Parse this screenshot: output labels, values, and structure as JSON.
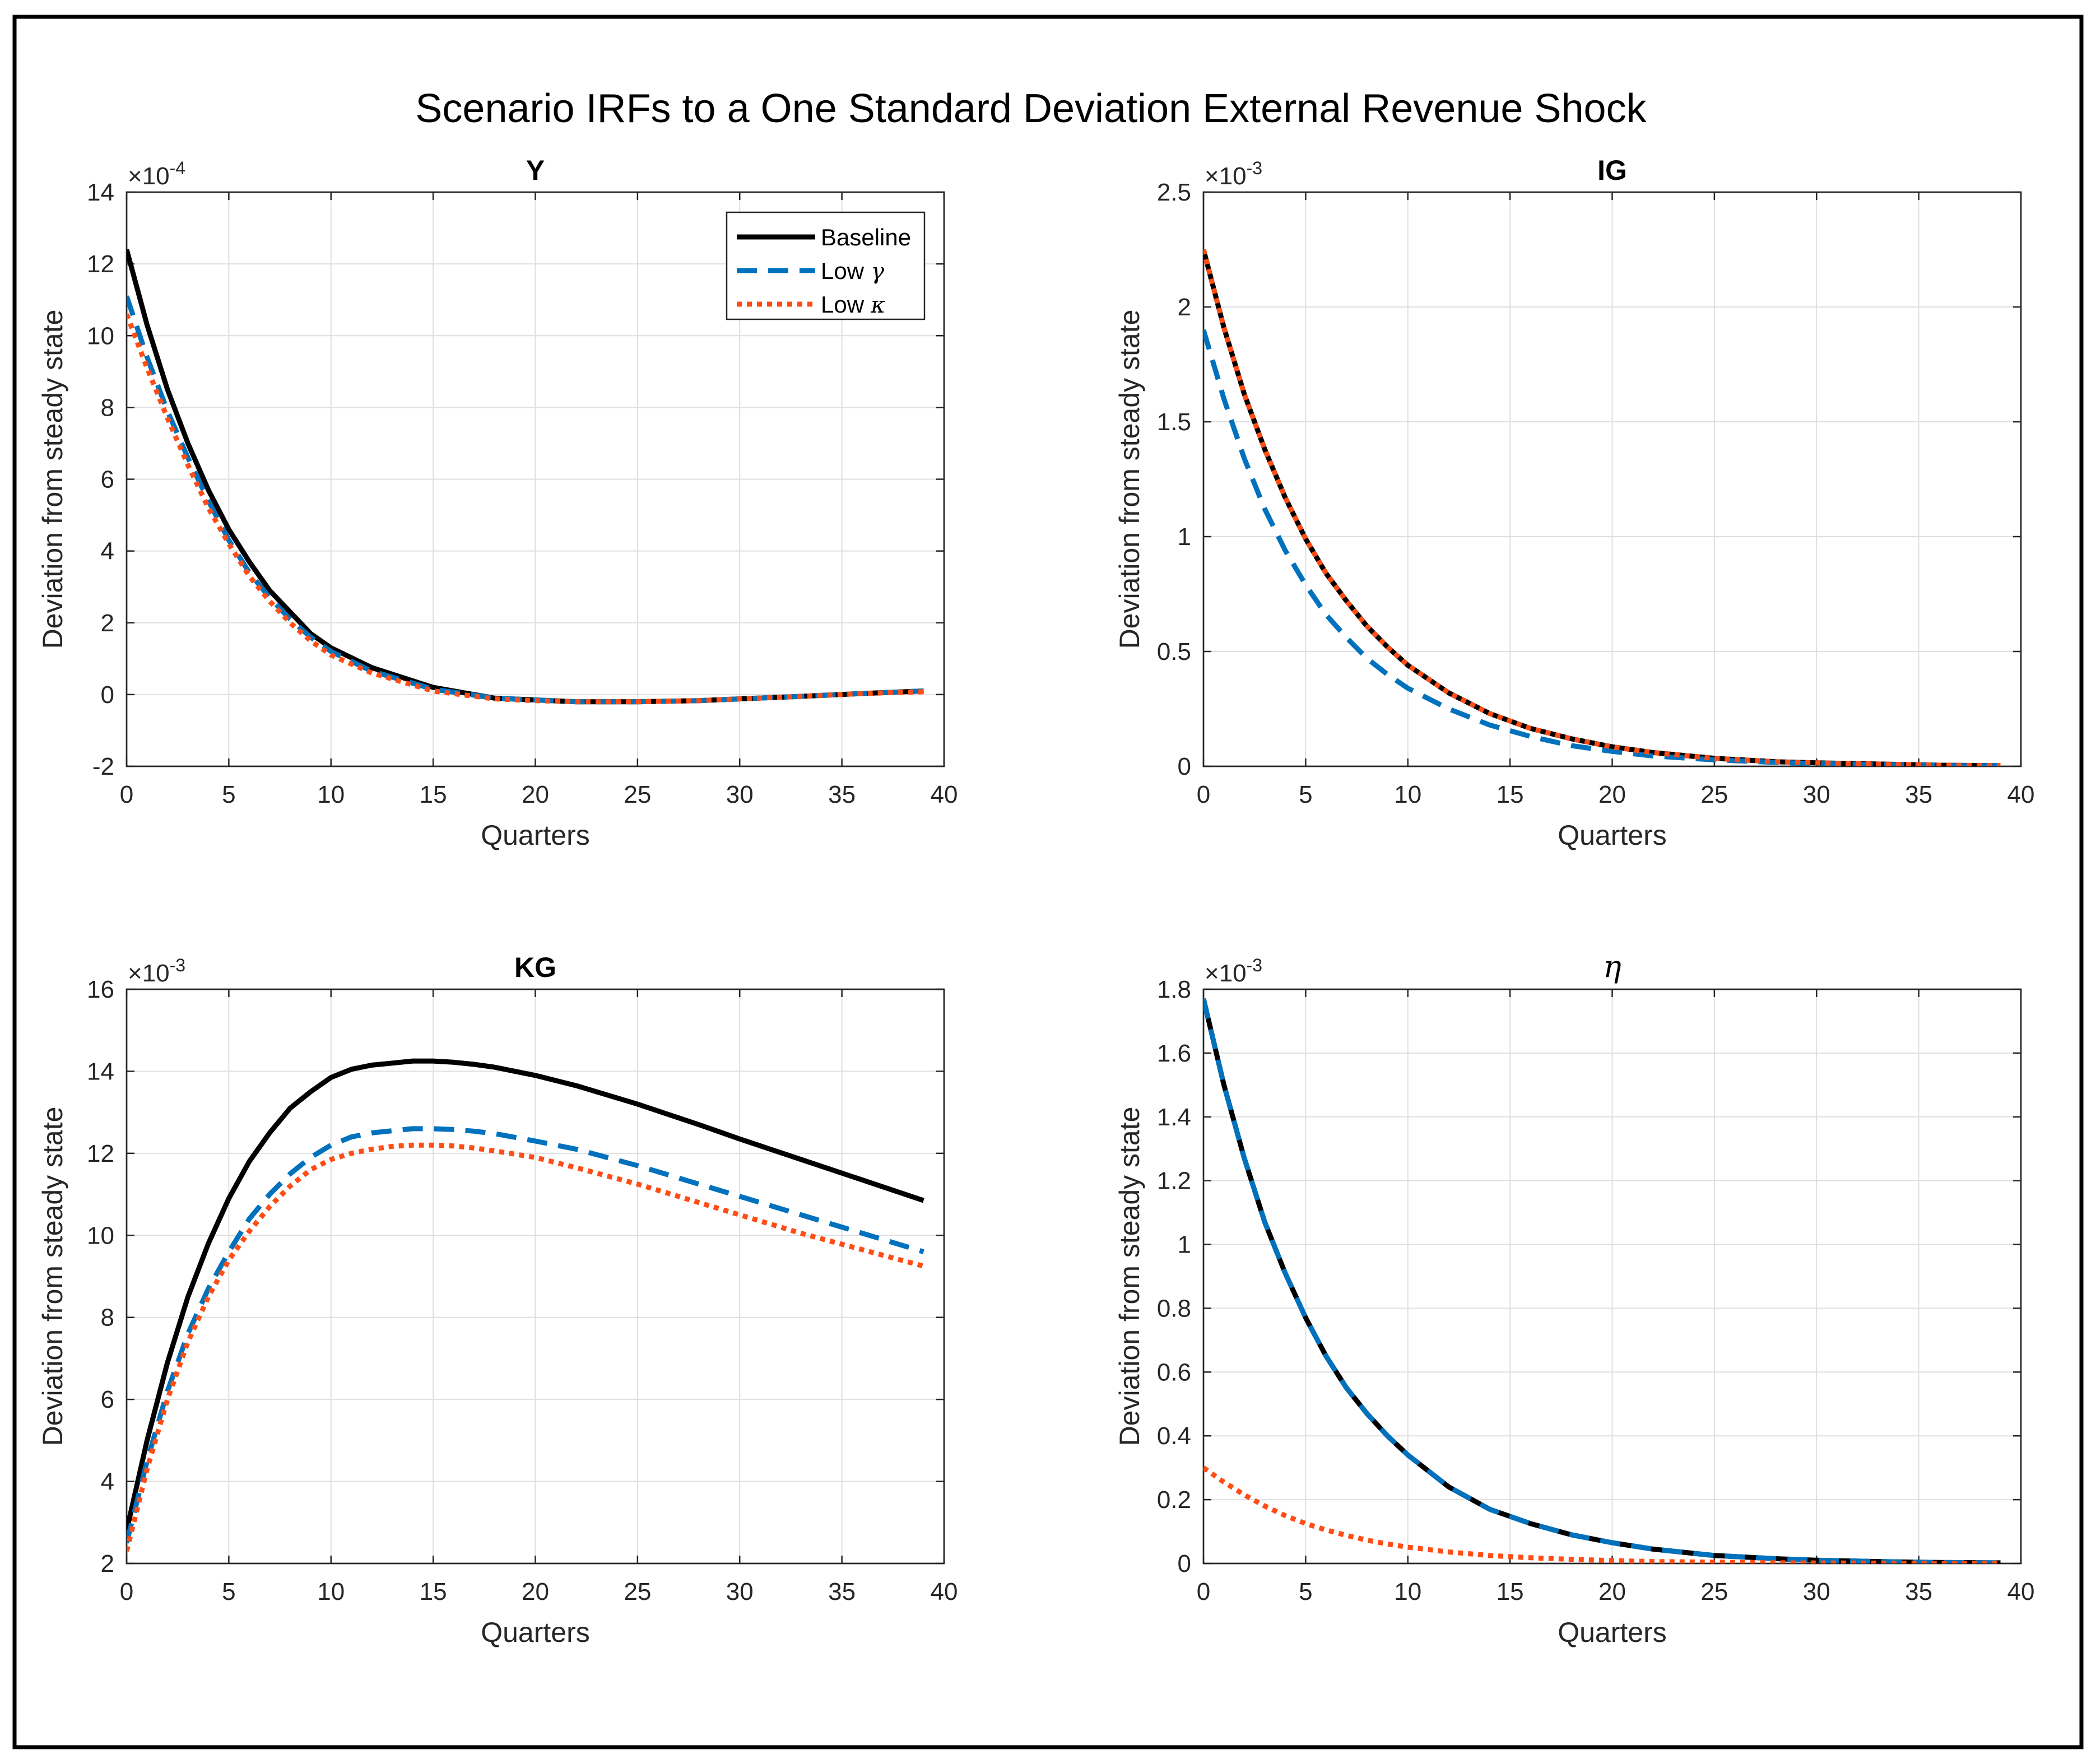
{
  "figure_title": "Scenario IRFs to a One Standard Deviation External Revenue Shock",
  "colors": {
    "baseline": "#000000",
    "low_gamma": "#0072BD",
    "low_kappa": "#FF4D16"
  },
  "legend": [
    {
      "key": "baseline",
      "label": "Baseline",
      "symbol": ""
    },
    {
      "key": "low_gamma",
      "label": "Low",
      "symbol": "γ"
    },
    {
      "key": "low_kappa",
      "label": "Low",
      "symbol": "κ"
    }
  ],
  "chart_data": [
    {
      "type": "line",
      "title": "Y",
      "xlabel": "Quarters",
      "ylabel": "Deviation from steady state",
      "exponent": {
        "base": "×10",
        "power": "-4"
      },
      "xlim": [
        0,
        40
      ],
      "ylim": [
        -2,
        14
      ],
      "xticks": [
        0,
        5,
        10,
        15,
        20,
        25,
        30,
        35,
        40
      ],
      "yticks": [
        -2,
        0,
        2,
        4,
        6,
        8,
        10,
        12,
        14
      ],
      "series": [
        {
          "key": "baseline",
          "name": "Baseline",
          "x": [
            0,
            1,
            2,
            3,
            4,
            5,
            6,
            7,
            8,
            9,
            10,
            12,
            15,
            18,
            20,
            22,
            25,
            28,
            30,
            33,
            36,
            39
          ],
          "y": [
            12.4,
            10.3,
            8.5,
            7.0,
            5.7,
            4.6,
            3.7,
            2.9,
            2.3,
            1.7,
            1.3,
            0.75,
            0.2,
            -0.1,
            -0.15,
            -0.2,
            -0.2,
            -0.17,
            -0.12,
            -0.05,
            0.03,
            0.1
          ]
        },
        {
          "key": "low_gamma",
          "name": "Low γ",
          "x": [
            0,
            1,
            2,
            3,
            4,
            5,
            6,
            7,
            8,
            9,
            10,
            12,
            15,
            18,
            20,
            22,
            25,
            28,
            30,
            33,
            36,
            39
          ],
          "y": [
            11.1,
            9.4,
            7.9,
            6.6,
            5.4,
            4.3,
            3.4,
            2.7,
            2.1,
            1.6,
            1.2,
            0.65,
            0.15,
            -0.1,
            -0.15,
            -0.2,
            -0.2,
            -0.17,
            -0.12,
            -0.05,
            0.03,
            0.1
          ]
        },
        {
          "key": "low_kappa",
          "name": "Low κ",
          "x": [
            0,
            1,
            2,
            3,
            4,
            5,
            6,
            7,
            8,
            9,
            10,
            12,
            15,
            18,
            20,
            22,
            25,
            28,
            30,
            33,
            36,
            39
          ],
          "y": [
            10.6,
            9.1,
            7.7,
            6.4,
            5.2,
            4.2,
            3.3,
            2.6,
            2.0,
            1.5,
            1.1,
            0.6,
            0.1,
            -0.12,
            -0.17,
            -0.2,
            -0.2,
            -0.17,
            -0.12,
            -0.05,
            0.03,
            0.08
          ]
        }
      ]
    },
    {
      "type": "line",
      "title": "IG",
      "xlabel": "Quarters",
      "ylabel": "Deviation from steady state",
      "exponent": {
        "base": "×10",
        "power": "-3"
      },
      "xlim": [
        0,
        40
      ],
      "ylim": [
        0,
        2.5
      ],
      "xticks": [
        0,
        5,
        10,
        15,
        20,
        25,
        30,
        35,
        40
      ],
      "yticks": [
        0,
        0.5,
        1,
        1.5,
        2,
        2.5
      ],
      "series": [
        {
          "key": "baseline",
          "name": "Baseline",
          "x": [
            0,
            1,
            2,
            3,
            4,
            5,
            6,
            7,
            8,
            9,
            10,
            12,
            14,
            16,
            18,
            20,
            22,
            25,
            28,
            30,
            33,
            36,
            39
          ],
          "y": [
            2.25,
            1.91,
            1.62,
            1.38,
            1.17,
            0.99,
            0.84,
            0.72,
            0.61,
            0.52,
            0.44,
            0.32,
            0.23,
            0.165,
            0.12,
            0.085,
            0.06,
            0.035,
            0.02,
            0.015,
            0.01,
            0.005,
            0.003
          ]
        },
        {
          "key": "low_gamma",
          "name": "Low γ",
          "x": [
            0,
            1,
            2,
            3,
            4,
            5,
            6,
            7,
            8,
            9,
            10,
            12,
            14,
            16,
            18,
            20,
            22,
            25,
            28,
            30,
            33,
            36,
            39
          ],
          "y": [
            1.9,
            1.6,
            1.34,
            1.12,
            0.94,
            0.79,
            0.66,
            0.56,
            0.47,
            0.4,
            0.34,
            0.25,
            0.18,
            0.13,
            0.09,
            0.065,
            0.045,
            0.028,
            0.017,
            0.012,
            0.008,
            0.004,
            0.002
          ]
        },
        {
          "key": "low_kappa",
          "name": "Low κ",
          "x": [
            0,
            1,
            2,
            3,
            4,
            5,
            6,
            7,
            8,
            9,
            10,
            12,
            14,
            16,
            18,
            20,
            22,
            25,
            28,
            30,
            33,
            36,
            39
          ],
          "y": [
            2.25,
            1.91,
            1.62,
            1.38,
            1.17,
            0.99,
            0.84,
            0.72,
            0.61,
            0.52,
            0.44,
            0.32,
            0.23,
            0.165,
            0.12,
            0.085,
            0.06,
            0.035,
            0.02,
            0.015,
            0.01,
            0.005,
            0.003
          ]
        }
      ]
    },
    {
      "type": "line",
      "title": "KG",
      "xlabel": "Quarters",
      "ylabel": "Deviation from steady state",
      "exponent": {
        "base": "×10",
        "power": "-3"
      },
      "xlim": [
        0,
        40
      ],
      "ylim": [
        2,
        16
      ],
      "xticks": [
        0,
        5,
        10,
        15,
        20,
        25,
        30,
        35,
        40
      ],
      "yticks": [
        2,
        4,
        6,
        8,
        10,
        12,
        14,
        16
      ],
      "series": [
        {
          "key": "baseline",
          "name": "Baseline",
          "x": [
            0,
            1,
            2,
            3,
            4,
            5,
            6,
            7,
            8,
            9,
            10,
            11,
            12,
            13,
            14,
            15,
            16,
            17,
            18,
            20,
            22,
            25,
            28,
            30,
            33,
            36,
            39
          ],
          "y": [
            2.8,
            5.0,
            6.9,
            8.5,
            9.8,
            10.9,
            11.8,
            12.5,
            13.1,
            13.5,
            13.85,
            14.05,
            14.15,
            14.2,
            14.25,
            14.25,
            14.22,
            14.17,
            14.1,
            13.9,
            13.65,
            13.2,
            12.7,
            12.35,
            11.85,
            11.35,
            10.85
          ]
        },
        {
          "key": "low_gamma",
          "name": "Low γ",
          "x": [
            0,
            1,
            2,
            3,
            4,
            5,
            6,
            7,
            8,
            9,
            10,
            11,
            12,
            13,
            14,
            15,
            16,
            17,
            18,
            20,
            22,
            25,
            28,
            30,
            33,
            36,
            39
          ],
          "y": [
            2.5,
            4.5,
            6.2,
            7.6,
            8.7,
            9.6,
            10.4,
            11.0,
            11.5,
            11.9,
            12.2,
            12.4,
            12.5,
            12.55,
            12.6,
            12.6,
            12.58,
            12.54,
            12.48,
            12.3,
            12.1,
            11.7,
            11.25,
            10.95,
            10.5,
            10.05,
            9.6
          ]
        },
        {
          "key": "low_kappa",
          "name": "Low κ",
          "x": [
            0,
            1,
            2,
            3,
            4,
            5,
            6,
            7,
            8,
            9,
            10,
            11,
            12,
            13,
            14,
            15,
            16,
            17,
            18,
            20,
            22,
            25,
            28,
            30,
            33,
            36,
            39
          ],
          "y": [
            2.3,
            4.3,
            6.0,
            7.4,
            8.5,
            9.4,
            10.1,
            10.7,
            11.2,
            11.6,
            11.85,
            12.0,
            12.1,
            12.17,
            12.2,
            12.2,
            12.18,
            12.13,
            12.06,
            11.9,
            11.65,
            11.25,
            10.8,
            10.5,
            10.05,
            9.65,
            9.25
          ]
        }
      ]
    },
    {
      "type": "line",
      "title": "η",
      "xlabel": "Quarters",
      "ylabel": "Deviation from steady state",
      "exponent": {
        "base": "×10",
        "power": "-3"
      },
      "xlim": [
        0,
        40
      ],
      "ylim": [
        0,
        1.8
      ],
      "xticks": [
        0,
        5,
        10,
        15,
        20,
        25,
        30,
        35,
        40
      ],
      "yticks": [
        0,
        0.2,
        0.4,
        0.6,
        0.8,
        1,
        1.2,
        1.4,
        1.6,
        1.8
      ],
      "series": [
        {
          "key": "baseline",
          "name": "Baseline",
          "x": [
            0,
            1,
            2,
            3,
            4,
            5,
            6,
            7,
            8,
            9,
            10,
            12,
            14,
            16,
            18,
            20,
            22,
            25,
            28,
            30,
            33,
            36,
            39
          ],
          "y": [
            1.77,
            1.5,
            1.27,
            1.07,
            0.91,
            0.77,
            0.65,
            0.55,
            0.47,
            0.4,
            0.34,
            0.24,
            0.17,
            0.125,
            0.09,
            0.065,
            0.045,
            0.025,
            0.015,
            0.01,
            0.006,
            0.003,
            0.002
          ]
        },
        {
          "key": "low_gamma",
          "name": "Low γ",
          "x": [
            0,
            1,
            2,
            3,
            4,
            5,
            6,
            7,
            8,
            9,
            10,
            12,
            14,
            16,
            18,
            20,
            22,
            25,
            28,
            30,
            33,
            36,
            39
          ],
          "y": [
            1.77,
            1.5,
            1.27,
            1.07,
            0.91,
            0.77,
            0.65,
            0.55,
            0.47,
            0.4,
            0.34,
            0.24,
            0.17,
            0.125,
            0.09,
            0.065,
            0.045,
            0.025,
            0.015,
            0.01,
            0.006,
            0.003,
            0.002
          ]
        },
        {
          "key": "low_kappa",
          "name": "Low κ",
          "x": [
            0,
            1,
            2,
            3,
            4,
            5,
            6,
            7,
            8,
            9,
            10,
            12,
            14,
            16,
            18,
            20,
            22,
            25,
            28,
            30,
            33,
            36,
            39
          ],
          "y": [
            0.3,
            0.255,
            0.215,
            0.18,
            0.15,
            0.125,
            0.105,
            0.088,
            0.073,
            0.061,
            0.051,
            0.036,
            0.025,
            0.018,
            0.013,
            0.009,
            0.006,
            0.004,
            0.002,
            0.0015,
            0.001,
            0.0005,
            0.0003
          ]
        }
      ]
    }
  ]
}
